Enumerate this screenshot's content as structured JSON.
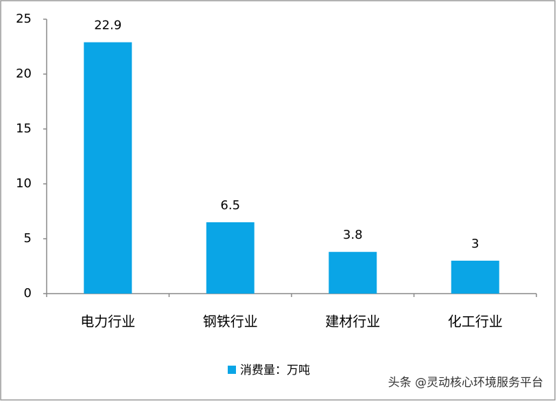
{
  "chart_data": {
    "type": "bar",
    "categories": [
      "电力行业",
      "钢铁行业",
      "建材行业",
      "化工行业"
    ],
    "series": [
      {
        "name": "消费量：万吨",
        "color": "#0aa5e6",
        "values": [
          22.9,
          6.5,
          3.8,
          3
        ]
      }
    ],
    "ylim": [
      0,
      25
    ],
    "yticks": [
      0,
      5,
      10,
      15,
      20,
      25
    ],
    "grid": false,
    "legend": "bottom",
    "watermark": "头条 @灵动核心环境服务平台"
  }
}
